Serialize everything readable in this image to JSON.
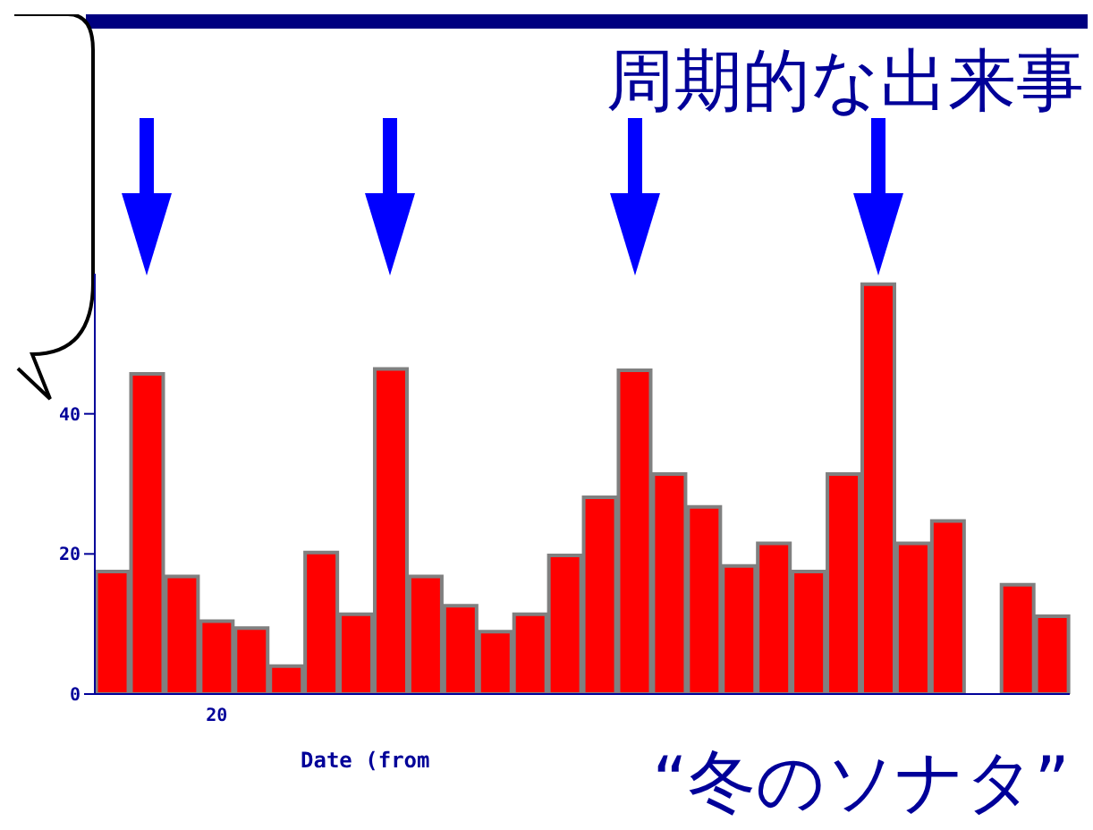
{
  "chart_data": {
    "type": "bar",
    "title": "周期的な出来事",
    "subtitle": "“冬のソナタ”",
    "xlabel": "Date (from",
    "categories": [
      null,
      null,
      null,
      "20",
      null,
      null,
      null,
      null,
      null,
      null,
      null,
      null,
      null,
      null,
      null,
      null,
      null,
      null,
      null,
      null,
      null,
      null,
      null,
      null,
      null,
      null,
      null,
      null
    ],
    "values": [
      17.5,
      45.7,
      16.8,
      10.4,
      9.4,
      4,
      20.2,
      11.4,
      46.4,
      16.8,
      12.6,
      8.9,
      11.4,
      19.8,
      28.1,
      46.2,
      31.4,
      26.7,
      18.3,
      21.5,
      17.5,
      31.4,
      58.5,
      21.5,
      24.7,
      null,
      15.6,
      11.1
    ],
    "color": "#ff0000",
    "ylim": [
      0,
      60
    ],
    "yticks": [
      0,
      20,
      40
    ],
    "grid": false,
    "legend": false
  }
}
